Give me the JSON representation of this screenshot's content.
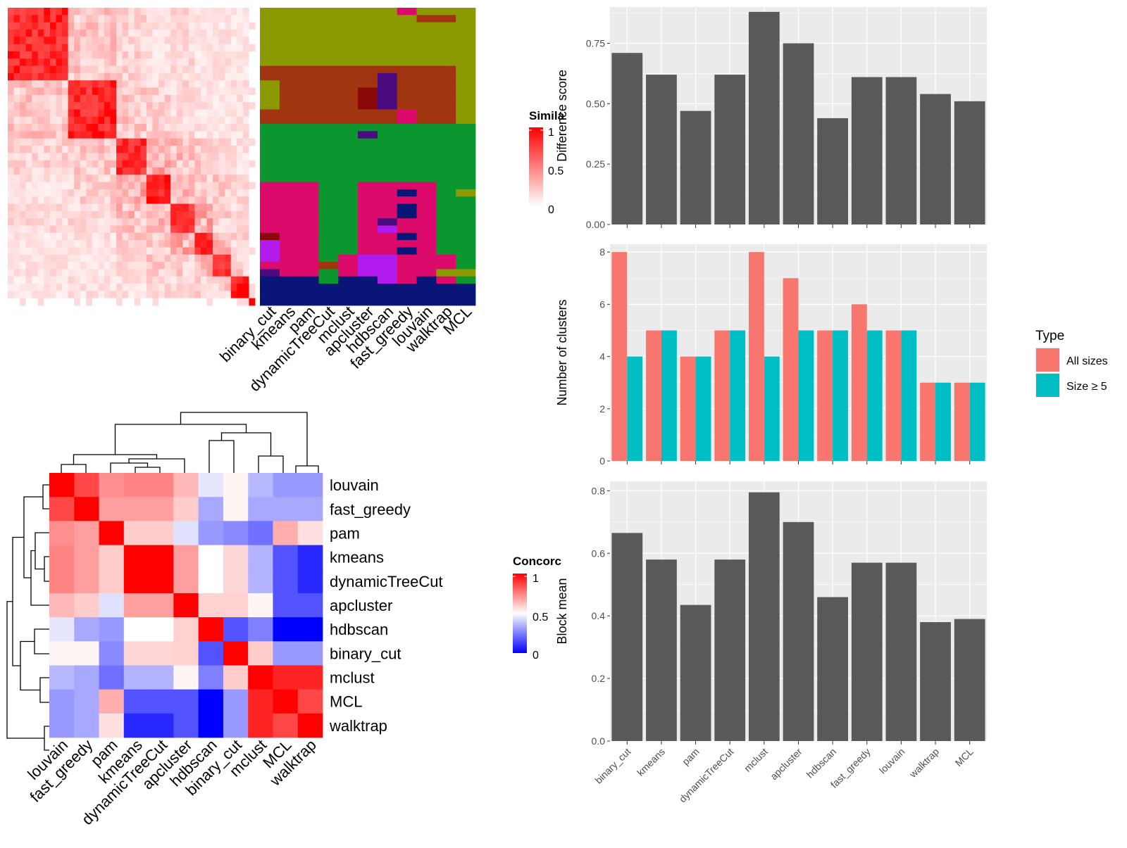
{
  "methods_order": [
    "binary_cut",
    "kmeans",
    "pam",
    "dynamicTreeCut",
    "mclust",
    "apcluster",
    "hdbscan",
    "fast_greedy",
    "louvain",
    "walktrap",
    "MCL"
  ],
  "colors": {
    "panel_bg": "#ebebeb",
    "grid": "#ffffff",
    "bar": "#595959",
    "all_sizes": "#f8766d",
    "size_ge5": "#00bfc4",
    "heat_high": "#ff0000",
    "heat_mid": "#ffffff",
    "heat_low": "#0000ff"
  },
  "similarity_heatmap": {
    "legend_title": "Simila",
    "legend_ticks": [
      "1",
      "0.5",
      "0"
    ],
    "column_labels": [
      "binary_cut",
      "kmeans",
      "pam",
      "dynamicTreeCut",
      "mclust",
      "apcluster",
      "hdbscan",
      "fast_greedy",
      "louvain",
      "walktrap",
      "MCL"
    ]
  },
  "concordance_heatmap": {
    "legend_title": "Concorc",
    "legend_ticks": [
      "1",
      "0.5",
      "0"
    ],
    "labels": [
      "louvain",
      "fast_greedy",
      "pam",
      "kmeans",
      "dynamicTreeCut",
      "apcluster",
      "hdbscan",
      "binary_cut",
      "mclust",
      "MCL",
      "walktrap"
    ],
    "matrix": [
      [
        1.0,
        0.86,
        0.72,
        0.74,
        0.74,
        0.64,
        0.45,
        0.52,
        0.36,
        0.3,
        0.3
      ],
      [
        0.86,
        1.0,
        0.69,
        0.69,
        0.69,
        0.6,
        0.33,
        0.52,
        0.33,
        0.33,
        0.33
      ],
      [
        0.72,
        0.69,
        1.0,
        0.6,
        0.6,
        0.44,
        0.3,
        0.27,
        0.22,
        0.66,
        0.56
      ],
      [
        0.74,
        0.69,
        0.6,
        1.0,
        1.0,
        0.69,
        0.5,
        0.58,
        0.35,
        0.16,
        0.08
      ],
      [
        0.74,
        0.69,
        0.6,
        1.0,
        1.0,
        0.69,
        0.5,
        0.58,
        0.35,
        0.16,
        0.08
      ],
      [
        0.64,
        0.6,
        0.44,
        0.69,
        0.69,
        1.0,
        0.59,
        0.59,
        0.52,
        0.16,
        0.16
      ],
      [
        0.45,
        0.33,
        0.3,
        0.5,
        0.5,
        0.59,
        1.0,
        0.16,
        0.25,
        0.0,
        0.0
      ],
      [
        0.52,
        0.52,
        0.27,
        0.58,
        0.58,
        0.59,
        0.16,
        1.0,
        0.6,
        0.3,
        0.3
      ],
      [
        0.36,
        0.33,
        0.22,
        0.35,
        0.35,
        0.52,
        0.25,
        0.6,
        1.0,
        0.93,
        0.93
      ],
      [
        0.3,
        0.33,
        0.66,
        0.16,
        0.16,
        0.16,
        0.0,
        0.3,
        0.93,
        1.0,
        0.86
      ],
      [
        0.3,
        0.33,
        0.56,
        0.08,
        0.08,
        0.16,
        0.0,
        0.3,
        0.93,
        0.86,
        1.0
      ]
    ]
  },
  "chart_data": [
    {
      "type": "bar",
      "ylabel": "Difference score",
      "categories": [
        "binary_cut",
        "kmeans",
        "pam",
        "dynamicTreeCut",
        "mclust",
        "apcluster",
        "hdbscan",
        "fast_greedy",
        "louvain",
        "walktrap",
        "MCL"
      ],
      "values": [
        0.71,
        0.62,
        0.47,
        0.62,
        0.88,
        0.75,
        0.44,
        0.61,
        0.61,
        0.54,
        0.51
      ],
      "ylim": [
        0,
        0.9
      ],
      "yticks": [
        "0.00",
        "0.25",
        "0.50",
        "0.75"
      ],
      "grid": true
    },
    {
      "type": "bar",
      "ylabel": "Number of clusters",
      "categories": [
        "binary_cut",
        "kmeans",
        "pam",
        "dynamicTreeCut",
        "mclust",
        "apcluster",
        "hdbscan",
        "fast_greedy",
        "louvain",
        "walktrap",
        "MCL"
      ],
      "series": [
        {
          "name": "All sizes",
          "values": [
            8,
            5,
            4,
            5,
            8,
            7,
            5,
            6,
            5,
            3,
            3
          ]
        },
        {
          "name": "Size ≥ 5",
          "values": [
            4,
            5,
            4,
            5,
            4,
            5,
            5,
            5,
            5,
            3,
            3
          ]
        }
      ],
      "ylim": [
        0,
        8.3
      ],
      "yticks": [
        "0",
        "2",
        "4",
        "6",
        "8"
      ],
      "legend_title": "Type",
      "legend_position": "right",
      "grid": true
    },
    {
      "type": "bar",
      "ylabel": "Block mean",
      "categories": [
        "binary_cut",
        "kmeans",
        "pam",
        "dynamicTreeCut",
        "mclust",
        "apcluster",
        "hdbscan",
        "fast_greedy",
        "louvain",
        "walktrap",
        "MCL"
      ],
      "values": [
        0.665,
        0.58,
        0.435,
        0.58,
        0.795,
        0.7,
        0.46,
        0.57,
        0.57,
        0.38,
        0.39
      ],
      "ylim": [
        0,
        0.83
      ],
      "yticks": [
        "0.0",
        "0.2",
        "0.4",
        "0.6",
        "0.8"
      ],
      "grid": true
    }
  ]
}
